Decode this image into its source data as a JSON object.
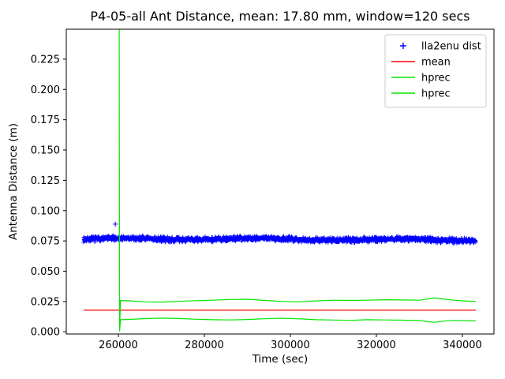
{
  "chart_data": {
    "type": "line+scatter",
    "title": "P4-05-all Ant Distance, mean: 17.80 mm, window=120 secs",
    "xlabel": "Time (sec)",
    "ylabel": "Antenna Distance (m)",
    "xlim": [
      247890,
      347340
    ],
    "ylim": [
      -0.0018,
      0.2497
    ],
    "xticks": [
      260000,
      280000,
      300000,
      320000,
      340000
    ],
    "xtick_labels": [
      "260000",
      "280000",
      "300000",
      "320000",
      "340000"
    ],
    "yticks": [
      0.0,
      0.025,
      0.05,
      0.075,
      0.1,
      0.125,
      0.15,
      0.175,
      0.2,
      0.225
    ],
    "ytick_labels": [
      "0.000",
      "0.025",
      "0.050",
      "0.075",
      "0.100",
      "0.125",
      "0.150",
      "0.175",
      "0.200",
      "0.225"
    ],
    "grid": false,
    "legend": {
      "position": "upper right",
      "entries": [
        {
          "label": "lla2enu dist",
          "marker": "plus",
          "color": "#0000ff"
        },
        {
          "label": "mean",
          "marker": "line",
          "color": "#ff0000"
        },
        {
          "label": "hprec",
          "marker": "line",
          "color": "#00e600"
        },
        {
          "label": "hprec",
          "marker": "line",
          "color": "#00e600"
        }
      ]
    },
    "series": [
      {
        "name": "lla2enu dist",
        "type": "scatter_band",
        "marker": "plus",
        "color": "#0000ff",
        "x_start": 251900,
        "x_end": 343100,
        "n_points": 1600,
        "baseline": 0.0763,
        "noise_amplitude": 0.0026,
        "slow_amplitude": 0.0007,
        "seed": 7,
        "outliers": [
          [
            259300,
            0.0888
          ]
        ]
      },
      {
        "name": "mean",
        "type": "line",
        "color": "#ff0000",
        "mean_value_mm": 17.8,
        "points": [
          [
            251900,
            0.0178
          ],
          [
            343100,
            0.0178
          ]
        ]
      },
      {
        "name": "hprec",
        "type": "line",
        "color": "#00e600",
        "points": [
          [
            260200,
            0.2497
          ],
          [
            260280,
            0.0008
          ],
          [
            260500,
            0.0258
          ],
          [
            263000,
            0.0255
          ],
          [
            266500,
            0.0247
          ],
          [
            270000,
            0.0245
          ],
          [
            274000,
            0.0251
          ],
          [
            278000,
            0.0257
          ],
          [
            282000,
            0.0261
          ],
          [
            286000,
            0.0267
          ],
          [
            290000,
            0.0269
          ],
          [
            294000,
            0.0259
          ],
          [
            298000,
            0.0251
          ],
          [
            302000,
            0.0247
          ],
          [
            306000,
            0.0255
          ],
          [
            310000,
            0.0261
          ],
          [
            314000,
            0.0259
          ],
          [
            318000,
            0.0261
          ],
          [
            322000,
            0.0265
          ],
          [
            326000,
            0.0263
          ],
          [
            330000,
            0.0261
          ],
          [
            333500,
            0.0279
          ],
          [
            335500,
            0.0271
          ],
          [
            338000,
            0.0261
          ],
          [
            340500,
            0.0255
          ],
          [
            343100,
            0.025
          ]
        ]
      },
      {
        "name": "hprec",
        "type": "line",
        "color": "#00e600",
        "points": [
          [
            260280,
            0.0005
          ],
          [
            260500,
            0.01
          ],
          [
            263000,
            0.0103
          ],
          [
            266500,
            0.0109
          ],
          [
            270000,
            0.0113
          ],
          [
            274000,
            0.011
          ],
          [
            278000,
            0.0104
          ],
          [
            282000,
            0.01
          ],
          [
            286000,
            0.0098
          ],
          [
            290000,
            0.0102
          ],
          [
            294000,
            0.0108
          ],
          [
            298000,
            0.0112
          ],
          [
            302000,
            0.0107
          ],
          [
            306000,
            0.01
          ],
          [
            310000,
            0.0097
          ],
          [
            314000,
            0.0095
          ],
          [
            318000,
            0.01
          ],
          [
            322000,
            0.0098
          ],
          [
            326000,
            0.0096
          ],
          [
            330000,
            0.0093
          ],
          [
            333500,
            0.0078
          ],
          [
            335500,
            0.0088
          ],
          [
            338000,
            0.0094
          ],
          [
            340500,
            0.0092
          ],
          [
            343100,
            0.009
          ]
        ]
      }
    ]
  }
}
